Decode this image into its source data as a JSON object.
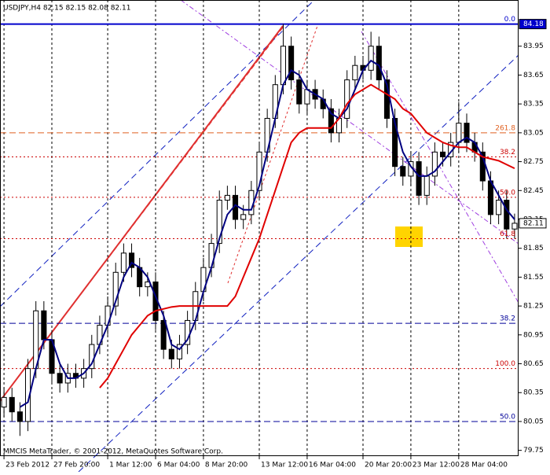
{
  "chart_data": {
    "type": "candlestick",
    "title": "USDJPY,H4  82.15 82.15 82.08 82.11",
    "footer": "MMCIS MetaTrader, © 2001-2012, MetaQuotes Software Corp.",
    "categories": [
      "23 Feb 2012",
      null,
      null,
      null,
      null,
      null,
      "27 Feb 20:00",
      null,
      null,
      null,
      null,
      null,
      null,
      "1 Mar 12:00",
      null,
      null,
      null,
      null,
      null,
      "6 Mar 04:00",
      null,
      null,
      null,
      null,
      null,
      "8 Mar 20:00",
      null,
      null,
      null,
      null,
      null,
      null,
      "13 Mar 12:00",
      null,
      null,
      null,
      null,
      null,
      "16 Mar 04:00",
      null,
      null,
      null,
      null,
      null,
      null,
      "20 Mar 20:00",
      null,
      null,
      null,
      null,
      null,
      "23 Mar 12:00",
      null,
      null,
      null,
      null,
      null,
      "28 Mar 04:00",
      null,
      null,
      null,
      null,
      null,
      null,
      null
    ],
    "open": [
      80.2,
      80.3,
      80.15,
      80.05,
      80.6,
      81.2,
      80.9,
      80.55,
      80.45,
      80.55,
      80.5,
      80.6,
      80.85,
      81.05,
      81.25,
      81.6,
      81.8,
      81.65,
      81.45,
      81.5,
      81.1,
      80.8,
      80.7,
      80.85,
      81.1,
      81.4,
      81.65,
      81.9,
      82.35,
      82.4,
      82.15,
      82.2,
      82.45,
      82.85,
      83.2,
      83.55,
      83.95,
      83.6,
      83.35,
      83.5,
      83.4,
      83.3,
      83.05,
      83.2,
      83.6,
      83.75,
      83.7,
      83.95,
      83.6,
      83.2,
      82.7,
      82.6,
      82.75,
      82.4,
      82.6,
      82.85,
      82.8,
      82.95,
      83.15,
      82.95,
      82.85,
      82.55,
      82.2,
      82.35,
      82.05
    ],
    "high": [
      80.4,
      80.4,
      80.25,
      80.7,
      81.3,
      81.3,
      81.0,
      80.65,
      80.65,
      80.65,
      80.7,
      80.95,
      81.15,
      81.35,
      81.7,
      81.9,
      81.9,
      81.75,
      81.6,
      81.6,
      81.2,
      80.9,
      80.95,
      81.2,
      81.5,
      81.75,
      82.0,
      82.45,
      82.5,
      82.5,
      82.3,
      82.55,
      82.95,
      83.3,
      83.65,
      84.18,
      84.05,
      83.7,
      83.6,
      83.6,
      83.5,
      83.4,
      83.3,
      83.7,
      83.85,
      83.85,
      84.1,
      84.05,
      83.7,
      83.3,
      82.8,
      82.85,
      82.85,
      82.7,
      82.95,
      82.95,
      83.05,
      83.37,
      83.25,
      83.05,
      82.95,
      82.65,
      82.45,
      82.45,
      82.21
    ],
    "low": [
      80.1,
      80.05,
      79.9,
      79.95,
      80.5,
      80.8,
      80.45,
      80.35,
      80.35,
      80.4,
      80.4,
      80.5,
      80.75,
      80.95,
      81.15,
      81.5,
      81.55,
      81.35,
      81.35,
      81.0,
      80.7,
      80.6,
      80.6,
      80.75,
      81.0,
      81.3,
      81.55,
      81.8,
      82.25,
      82.05,
      82.05,
      82.1,
      82.35,
      82.75,
      83.1,
      83.45,
      83.5,
      83.25,
      83.25,
      83.3,
      83.2,
      82.95,
      82.95,
      83.1,
      83.5,
      83.6,
      83.6,
      83.5,
      83.1,
      82.6,
      82.5,
      82.5,
      82.3,
      82.3,
      82.5,
      82.7,
      82.7,
      82.85,
      82.85,
      82.75,
      82.45,
      82.1,
      82.1,
      81.95,
      81.95
    ],
    "close": [
      80.3,
      80.15,
      80.05,
      80.6,
      81.2,
      80.9,
      80.55,
      80.45,
      80.55,
      80.5,
      80.6,
      80.85,
      81.05,
      81.25,
      81.6,
      81.8,
      81.65,
      81.45,
      81.5,
      81.1,
      80.8,
      80.7,
      80.85,
      81.1,
      81.4,
      81.65,
      81.9,
      82.35,
      82.4,
      82.15,
      82.2,
      82.45,
      82.85,
      83.2,
      83.55,
      83.95,
      83.6,
      83.35,
      83.5,
      83.4,
      83.3,
      83.05,
      83.2,
      83.6,
      83.75,
      83.7,
      83.95,
      83.6,
      83.2,
      82.7,
      82.6,
      82.75,
      82.4,
      82.6,
      82.85,
      82.8,
      82.95,
      83.15,
      82.95,
      82.85,
      82.55,
      82.2,
      82.35,
      82.05,
      82.11
    ],
    "series": [
      {
        "color": "#000080",
        "values": [
          null,
          null,
          80.2,
          80.25,
          80.6,
          80.9,
          80.9,
          80.65,
          80.5,
          80.5,
          80.55,
          80.65,
          80.85,
          81.05,
          81.3,
          81.55,
          81.7,
          81.65,
          81.55,
          81.35,
          81.15,
          80.85,
          80.8,
          80.9,
          81.1,
          81.4,
          81.65,
          81.95,
          82.2,
          82.3,
          82.25,
          82.25,
          82.5,
          82.85,
          83.2,
          83.55,
          83.7,
          83.65,
          83.5,
          83.45,
          83.4,
          83.25,
          83.2,
          83.3,
          83.5,
          83.7,
          83.8,
          83.75,
          83.55,
          83.15,
          82.85,
          82.7,
          82.6,
          82.6,
          82.65,
          82.75,
          82.85,
          82.95,
          83.0,
          82.95,
          82.8,
          82.55,
          82.4,
          82.25,
          82.15
        ]
      },
      {
        "color": "#e00000",
        "values": [
          null,
          null,
          null,
          null,
          null,
          null,
          null,
          null,
          null,
          null,
          null,
          null,
          80.4,
          80.5,
          80.65,
          80.8,
          80.95,
          81.05,
          81.15,
          81.2,
          81.22,
          81.24,
          81.25,
          81.25,
          81.25,
          81.25,
          81.25,
          81.25,
          81.25,
          81.35,
          81.55,
          81.75,
          81.95,
          82.2,
          82.45,
          82.7,
          82.95,
          83.05,
          83.1,
          83.1,
          83.1,
          83.1,
          83.2,
          83.35,
          83.45,
          83.5,
          83.55,
          83.5,
          83.45,
          83.4,
          83.3,
          83.25,
          83.15,
          83.05,
          83.0,
          82.95,
          82.92,
          82.9,
          82.9,
          82.85,
          82.8,
          82.78,
          82.76,
          82.72,
          82.68
        ]
      }
    ],
    "levels": [
      {
        "label": "0.0",
        "value": 84.18,
        "color": "#0000cc",
        "style": "solid"
      },
      {
        "label": "261.8",
        "value": 83.05,
        "color": "#e06020",
        "style": "dashed"
      },
      {
        "label": "38.2",
        "value": 82.8,
        "color": "#cc0000",
        "style": "dotted"
      },
      {
        "label": "50.0",
        "value": 82.38,
        "color": "#cc0000",
        "style": "dotted"
      },
      {
        "label": "61.8",
        "value": 81.95,
        "color": "#cc0000",
        "style": "dotted"
      },
      {
        "label": "38.2",
        "value": 81.07,
        "color": "#000099",
        "style": "dashed"
      },
      {
        "label": "100.0",
        "value": 80.6,
        "color": "#cc0000",
        "style": "dotted"
      },
      {
        "label": "50.0",
        "value": 80.05,
        "color": "#000099",
        "style": "dashed"
      }
    ],
    "price_markers": [
      84.18,
      82.11
    ],
    "ylim": [
      79.69,
      84.43
    ],
    "yticks": [
      79.75,
      80.05,
      80.35,
      80.65,
      80.95,
      81.25,
      81.55,
      81.85,
      82.15,
      82.45,
      82.75,
      83.05,
      83.35,
      83.65,
      83.95
    ],
    "grid": true
  }
}
